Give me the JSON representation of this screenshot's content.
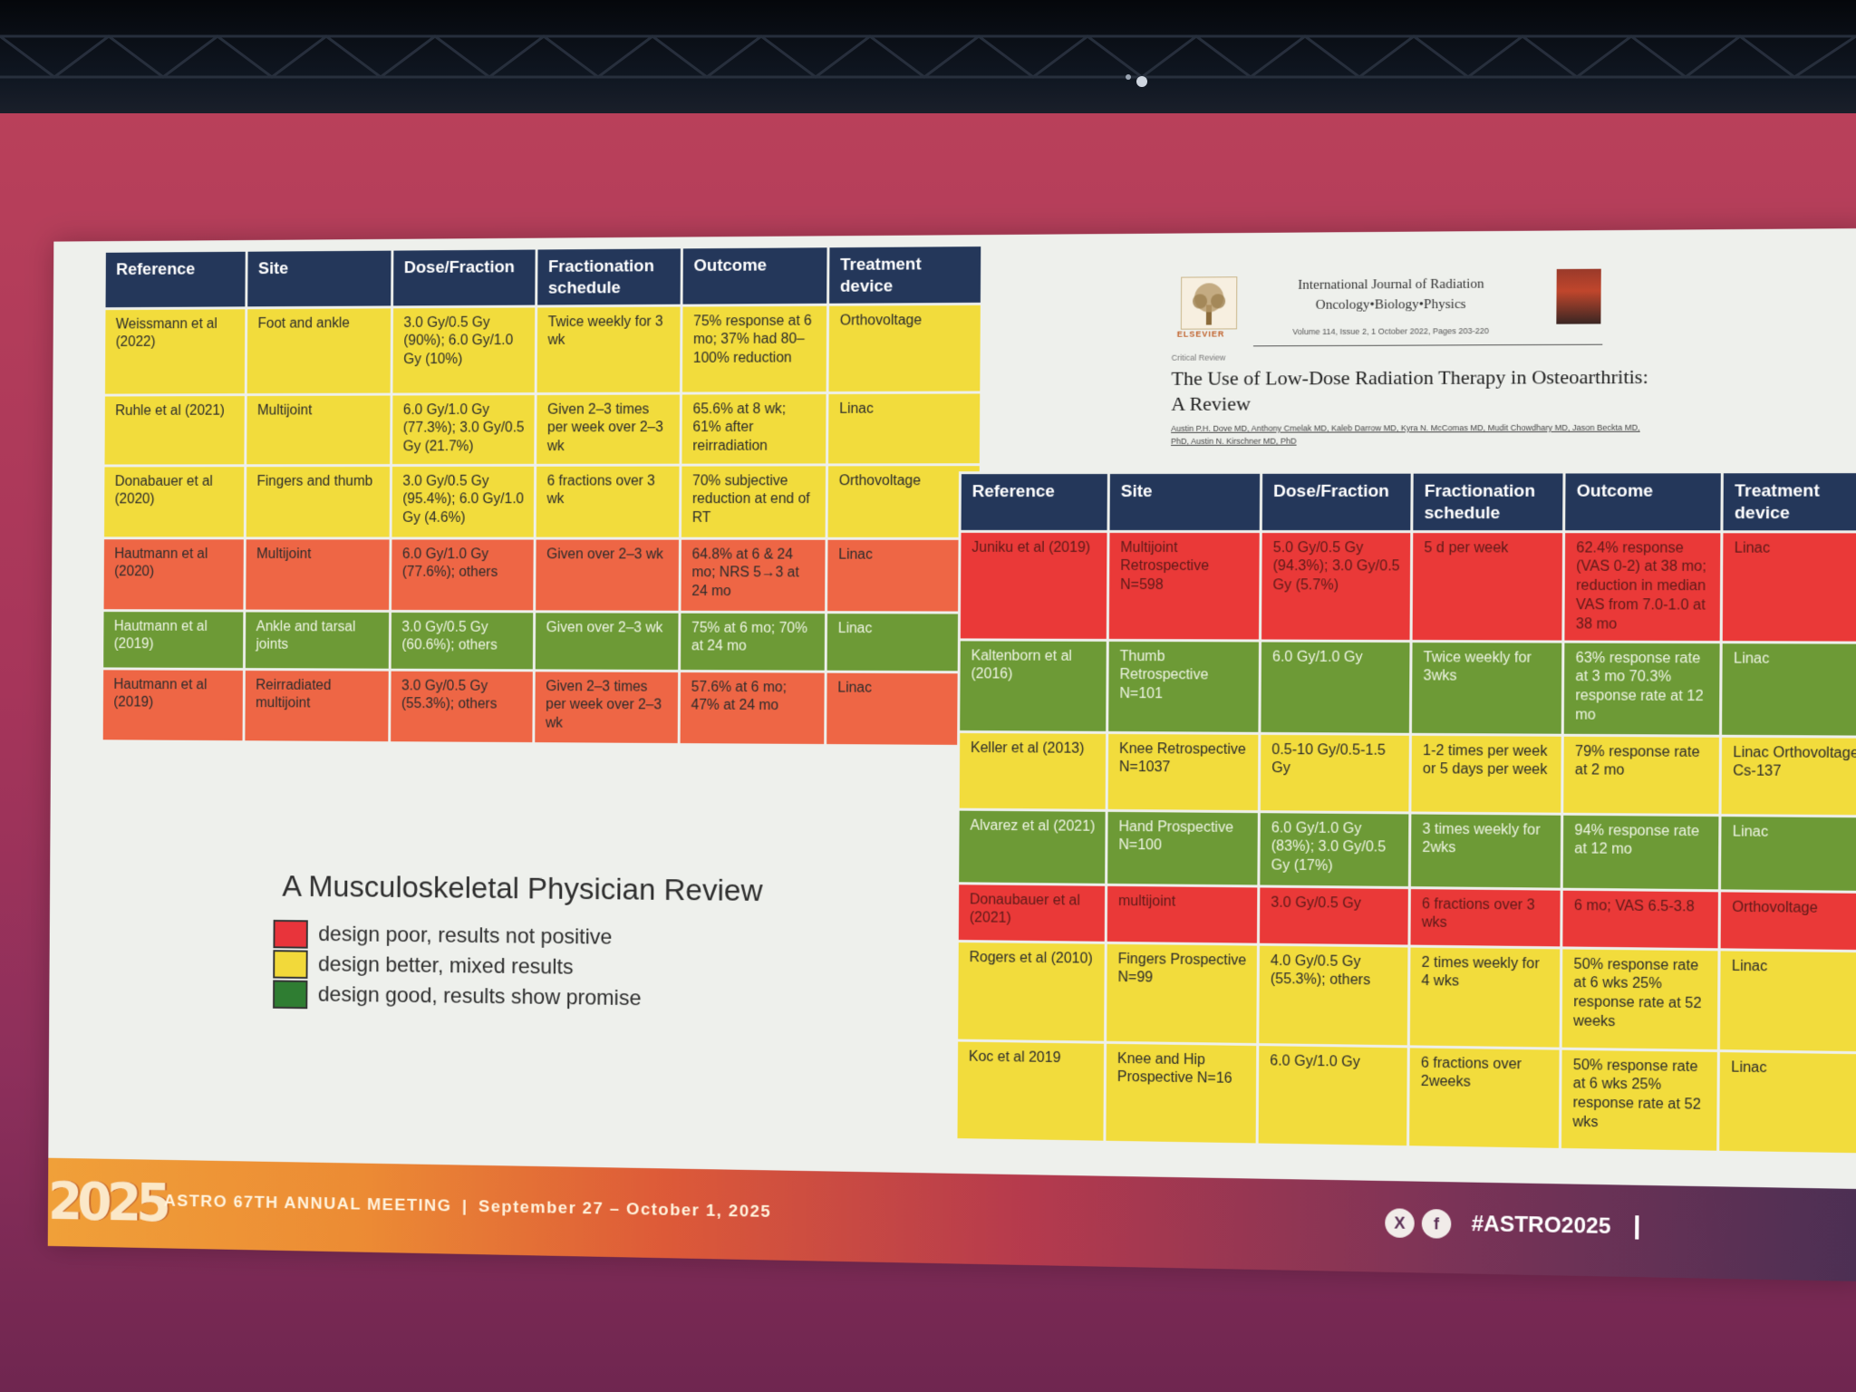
{
  "left_table": {
    "headers": [
      "Reference",
      "Site",
      "Dose/Fraction",
      "Fractionation schedule",
      "Outcome",
      "Treatment device"
    ],
    "rows": [
      {
        "color": "#f2dc3c",
        "cells": [
          "Weissmann et al (2022)",
          "Foot and ankle",
          "3.0 Gy/0.5 Gy (90%); 6.0 Gy/1.0 Gy (10%)",
          "Twice weekly for 3 wk",
          "75% response at 6 mo; 37% had 80–100% reduction",
          "Orthovoltage"
        ]
      },
      {
        "color": "#f2dc3c",
        "cells": [
          "Ruhle et al (2021)",
          "Multijoint",
          "6.0 Gy/1.0 Gy (77.3%); 3.0 Gy/0.5 Gy (21.7%)",
          "Given 2–3 times per week over 2–3 wk",
          "65.6% at 8 wk; 61% after reirradiation",
          "Linac"
        ]
      },
      {
        "color": "#f2dc3c",
        "cells": [
          "Donabauer et al (2020)",
          "Fingers and thumb",
          "3.0 Gy/0.5 Gy (95.4%); 6.0 Gy/1.0 Gy (4.6%)",
          "6 fractions over 3 wk",
          "70% subjective reduction at end of RT",
          "Orthovoltage"
        ]
      },
      {
        "color": "#ee6645",
        "cells": [
          "Hautmann et al (2020)",
          "Multijoint",
          "6.0 Gy/1.0 Gy (77.6%); others",
          "Given over 2–3 wk",
          "64.8% at 6 & 24 mo; NRS 5→3 at 24 mo",
          "Linac"
        ]
      },
      {
        "color": "#6d9a36",
        "cells": [
          "Hautmann et al (2019)",
          "Ankle and tarsal joints",
          "3.0 Gy/0.5 Gy (60.6%); others",
          "Given over 2–3 wk",
          "75% at 6 mo; 70% at 24 mo",
          "Linac"
        ]
      },
      {
        "color": "#ee6645",
        "cells": [
          "Hautmann et al (2019)",
          "Reirradiated multijoint",
          "3.0 Gy/0.5 Gy (55.3%); others",
          "Given 2–3 times per week over 2–3 wk",
          "57.6% at 6 mo; 47% at 24 mo",
          "Linac"
        ]
      }
    ]
  },
  "right_table": {
    "headers": [
      "Reference",
      "Site",
      "Dose/Fraction",
      "Fractionation schedule",
      "Outcome",
      "Treatment device"
    ],
    "rows": [
      {
        "color": "#ea3938",
        "cells": [
          "Juniku et al (2019)",
          "Multijoint Retrospective N=598",
          "5.0 Gy/0.5 Gy (94.3%); 3.0 Gy/0.5 Gy (5.7%)",
          "5 d per week",
          "62.4% response (VAS 0-2) at 38 mo; reduction in median VAS from 7.0-1.0 at 38 mo",
          "Linac"
        ]
      },
      {
        "color": "#6d9a36",
        "cells": [
          "Kaltenborn et al (2016)",
          "Thumb Retrospective N=101",
          "6.0 Gy/1.0 Gy",
          "Twice weekly for 3wks",
          "63% response rate at 3 mo 70.3% response rate at 12 mo",
          "Linac"
        ]
      },
      {
        "color": "#f2dc3c",
        "cells": [
          "Keller et al (2013)",
          "Knee Retrospective N=1037",
          "0.5-10 Gy/0.5-1.5 Gy",
          "1-2 times per week or 5 days per week",
          "79% response rate at 2 mo",
          "Linac Orthovoltage Cs-137"
        ]
      },
      {
        "color": "#6d9a36",
        "cells": [
          "Alvarez et al (2021)",
          "Hand Prospective N=100",
          "6.0 Gy/1.0 Gy (83%); 3.0 Gy/0.5 Gy (17%)",
          "3 times weekly for 2wks",
          "94% response rate at 12 mo",
          "Linac"
        ]
      },
      {
        "color": "#ea3938",
        "cells": [
          "Donaubauer et al (2021)",
          "multijoint",
          "3.0 Gy/0.5 Gy",
          "6 fractions over 3 wks",
          "6 mo; VAS 6.5-3.8",
          "Orthovoltage"
        ]
      },
      {
        "color": "#f2dc3c",
        "cells": [
          "Rogers et al (2010)",
          "Fingers Prospective N=99",
          "4.0 Gy/0.5 Gy (55.3%); others",
          "2 times weekly for 4 wks",
          "50% response rate at 6 wks 25% response rate at 52 weeks",
          "Linac"
        ]
      },
      {
        "color": "#f2dc3c",
        "cells": [
          "Koc et al 2019",
          "Knee and Hip Prospective N=16",
          "6.0 Gy/1.0 Gy",
          "6 fractions over 2weeks",
          "50% response rate at 6 wks 25% response rate at 52 wks",
          "Linac"
        ]
      }
    ]
  },
  "journal": {
    "publisher": "ELSEVIER",
    "name_line1": "International Journal of Radiation",
    "name_line2": "Oncology•Biology•Physics",
    "volume": "Volume 114, Issue 2, 1 October 2022, Pages 203-220",
    "review_type": "Critical Review",
    "title": "The Use of Low-Dose Radiation Therapy in Osteoarthritis: A Review",
    "authors": "Austin P.H. Dove MD, Anthony Cmelak MD, Kaleb Darrow MD, Kyra N. McComas MD, Mudit Chowdhary MD, Jason Beckta MD, PhD, Austin N. Kirschner MD, PhD"
  },
  "legend": {
    "title": "A Musculoskeletal Physician Review",
    "items": [
      {
        "color": "#e8343b",
        "label": "design poor, results not positive"
      },
      {
        "color": "#f2d93a",
        "label": "design better, mixed results"
      },
      {
        "color": "#2f7d32",
        "label": "design good, results show promise"
      }
    ]
  },
  "footer": {
    "logo_year": "2025",
    "meeting": "ASTRO 67TH ANNUAL MEETING",
    "separator": "|",
    "dates": "September 27 – October 1, 2025",
    "social_x": "X",
    "social_f": "f",
    "hashtag": "#ASTRO2025"
  }
}
